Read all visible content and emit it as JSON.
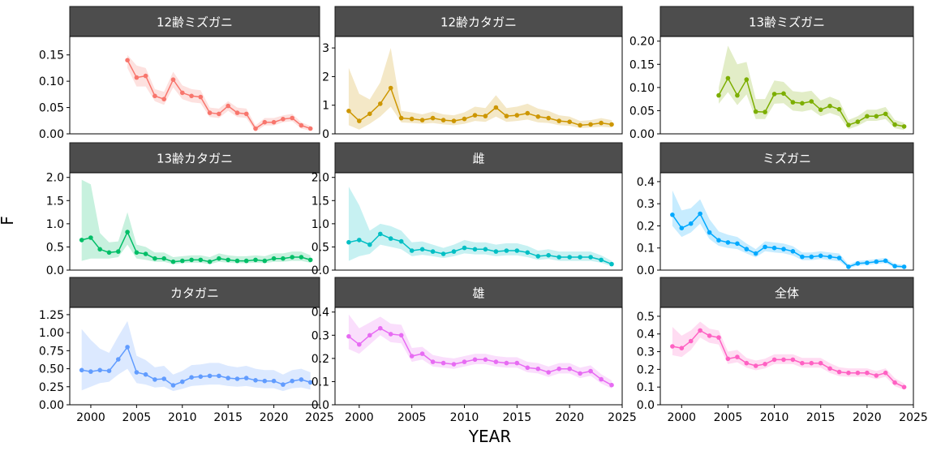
{
  "chart_data": {
    "type": "line",
    "layout": "faceted 3x3, free y scales, shared x axis",
    "xlabel": "YEAR",
    "ylabel": "F",
    "xlim": [
      1997.7,
      2025
    ],
    "x_ticks": [
      2000,
      2005,
      2010,
      2015,
      2020,
      2025
    ],
    "x_tick_labels": [
      "2000",
      "2005",
      "2010",
      "2015",
      "2020",
      "2025"
    ],
    "grid": false,
    "legend": "none",
    "panels": [
      {
        "title": "12齢ミズガニ",
        "color": "#F8766D",
        "ylim": [
          0,
          0.185
        ],
        "y_ticks": [
          0,
          0.05,
          0.1,
          0.15
        ],
        "y_tick_labels": [
          "0.00",
          "0.05",
          "0.10",
          "0.15"
        ],
        "x": [
          2004,
          2005,
          2006,
          2007,
          2008,
          2009,
          2010,
          2011,
          2012,
          2013,
          2014,
          2015,
          2016,
          2017,
          2018,
          2019,
          2020,
          2021,
          2022,
          2023,
          2024
        ],
        "values": [
          0.14,
          0.107,
          0.11,
          0.072,
          0.066,
          0.103,
          0.078,
          0.072,
          0.07,
          0.04,
          0.038,
          0.053,
          0.04,
          0.038,
          0.01,
          0.022,
          0.022,
          0.028,
          0.03,
          0.016,
          0.01
        ],
        "lower": [
          0.125,
          0.09,
          0.09,
          0.062,
          0.055,
          0.088,
          0.066,
          0.06,
          0.058,
          0.032,
          0.03,
          0.044,
          0.032,
          0.03,
          0.004,
          0.016,
          0.016,
          0.022,
          0.024,
          0.01,
          0.006
        ],
        "upper": [
          0.15,
          0.13,
          0.125,
          0.085,
          0.08,
          0.118,
          0.092,
          0.085,
          0.083,
          0.05,
          0.048,
          0.062,
          0.05,
          0.048,
          0.016,
          0.03,
          0.03,
          0.035,
          0.038,
          0.022,
          0.015
        ]
      },
      {
        "title": "12齢カタガニ",
        "color": "#CD9600",
        "ylim": [
          0,
          3.4
        ],
        "y_ticks": [
          0,
          1,
          2,
          3
        ],
        "y_tick_labels": [
          "0",
          "1",
          "2",
          "3"
        ],
        "x": [
          1999,
          2000,
          2001,
          2002,
          2003,
          2004,
          2005,
          2006,
          2007,
          2008,
          2009,
          2010,
          2011,
          2012,
          2013,
          2014,
          2015,
          2016,
          2017,
          2018,
          2019,
          2020,
          2021,
          2022,
          2023,
          2024
        ],
        "values": [
          0.8,
          0.45,
          0.7,
          1.05,
          1.6,
          0.55,
          0.52,
          0.48,
          0.55,
          0.48,
          0.45,
          0.52,
          0.65,
          0.62,
          0.92,
          0.62,
          0.65,
          0.72,
          0.6,
          0.55,
          0.45,
          0.42,
          0.3,
          0.33,
          0.38,
          0.33
        ],
        "lower": [
          0.3,
          0.15,
          0.35,
          0.6,
          0.95,
          0.4,
          0.38,
          0.35,
          0.38,
          0.33,
          0.3,
          0.35,
          0.45,
          0.42,
          0.6,
          0.42,
          0.45,
          0.5,
          0.4,
          0.38,
          0.3,
          0.28,
          0.2,
          0.22,
          0.25,
          0.22
        ],
        "upper": [
          2.3,
          1.4,
          1.2,
          1.8,
          3.0,
          0.8,
          0.75,
          0.68,
          0.78,
          0.68,
          0.65,
          0.75,
          0.95,
          0.9,
          1.35,
          0.9,
          0.95,
          1.05,
          0.88,
          0.8,
          0.65,
          0.6,
          0.45,
          0.48,
          0.55,
          0.48
        ]
      },
      {
        "title": "13齢ミズガニ",
        "color": "#7CAE00",
        "ylim": [
          0,
          0.21
        ],
        "y_ticks": [
          0,
          0.05,
          0.1,
          0.15,
          0.2
        ],
        "y_tick_labels": [
          "0.00",
          "0.05",
          "0.10",
          "0.15",
          "0.20"
        ],
        "x": [
          2004,
          2005,
          2006,
          2007,
          2008,
          2009,
          2010,
          2011,
          2012,
          2013,
          2014,
          2015,
          2016,
          2017,
          2018,
          2019,
          2020,
          2021,
          2022,
          2023,
          2024
        ],
        "values": [
          0.083,
          0.12,
          0.083,
          0.117,
          0.048,
          0.047,
          0.086,
          0.087,
          0.068,
          0.066,
          0.07,
          0.052,
          0.06,
          0.053,
          0.019,
          0.026,
          0.038,
          0.038,
          0.043,
          0.02,
          0.016
        ],
        "lower": [
          0.065,
          0.09,
          0.062,
          0.085,
          0.032,
          0.032,
          0.065,
          0.066,
          0.05,
          0.048,
          0.052,
          0.038,
          0.045,
          0.038,
          0.01,
          0.017,
          0.028,
          0.028,
          0.032,
          0.012,
          0.008
        ],
        "upper": [
          0.1,
          0.19,
          0.15,
          0.155,
          0.075,
          0.075,
          0.115,
          0.112,
          0.092,
          0.09,
          0.093,
          0.072,
          0.08,
          0.072,
          0.03,
          0.038,
          0.052,
          0.052,
          0.058,
          0.03,
          0.024
        ]
      },
      {
        "title": "13齢カタガニ",
        "color": "#00BE67",
        "ylim": [
          0,
          2.1
        ],
        "y_ticks": [
          0,
          0.5,
          1,
          1.5,
          2
        ],
        "y_tick_labels": [
          "0.0",
          "0.5",
          "1.0",
          "1.5",
          "2.0"
        ],
        "x": [
          1999,
          2000,
          2001,
          2002,
          2003,
          2004,
          2005,
          2006,
          2007,
          2008,
          2009,
          2010,
          2011,
          2012,
          2013,
          2014,
          2015,
          2016,
          2017,
          2018,
          2019,
          2020,
          2021,
          2022,
          2023,
          2024
        ],
        "values": [
          0.65,
          0.7,
          0.45,
          0.38,
          0.4,
          0.82,
          0.38,
          0.35,
          0.25,
          0.25,
          0.18,
          0.2,
          0.22,
          0.22,
          0.18,
          0.25,
          0.22,
          0.2,
          0.2,
          0.22,
          0.2,
          0.25,
          0.25,
          0.28,
          0.28,
          0.22
        ],
        "lower": [
          0.2,
          0.25,
          0.25,
          0.25,
          0.28,
          0.55,
          0.25,
          0.22,
          0.18,
          0.18,
          0.13,
          0.15,
          0.16,
          0.16,
          0.13,
          0.18,
          0.16,
          0.15,
          0.15,
          0.16,
          0.15,
          0.18,
          0.18,
          0.2,
          0.2,
          0.16
        ],
        "upper": [
          1.95,
          1.85,
          0.8,
          0.6,
          0.62,
          1.25,
          0.55,
          0.5,
          0.38,
          0.38,
          0.28,
          0.3,
          0.32,
          0.32,
          0.28,
          0.36,
          0.32,
          0.3,
          0.3,
          0.32,
          0.3,
          0.36,
          0.36,
          0.4,
          0.4,
          0.32
        ]
      },
      {
        "title": "雌",
        "color": "#00BFC4",
        "ylim": [
          0,
          2.1
        ],
        "y_ticks": [
          0,
          0.5,
          1,
          1.5,
          2
        ],
        "y_tick_labels": [
          "0.0",
          "0.5",
          "1.0",
          "1.5",
          "2.0"
        ],
        "x": [
          1999,
          2000,
          2001,
          2002,
          2003,
          2004,
          2005,
          2006,
          2007,
          2008,
          2009,
          2010,
          2011,
          2012,
          2013,
          2014,
          2015,
          2016,
          2017,
          2018,
          2019,
          2020,
          2021,
          2022,
          2023,
          2024
        ],
        "values": [
          0.6,
          0.65,
          0.55,
          0.78,
          0.68,
          0.62,
          0.42,
          0.45,
          0.4,
          0.35,
          0.4,
          0.48,
          0.45,
          0.45,
          0.4,
          0.42,
          0.42,
          0.38,
          0.3,
          0.32,
          0.28,
          0.28,
          0.28,
          0.28,
          0.22,
          0.13
        ],
        "lower": [
          0.2,
          0.3,
          0.35,
          0.55,
          0.5,
          0.45,
          0.3,
          0.33,
          0.3,
          0.26,
          0.3,
          0.36,
          0.34,
          0.34,
          0.3,
          0.32,
          0.32,
          0.28,
          0.22,
          0.24,
          0.2,
          0.2,
          0.2,
          0.2,
          0.16,
          0.08
        ],
        "upper": [
          1.8,
          1.4,
          0.85,
          1.0,
          0.95,
          0.85,
          0.6,
          0.62,
          0.55,
          0.48,
          0.55,
          0.65,
          0.6,
          0.6,
          0.55,
          0.58,
          0.58,
          0.52,
          0.42,
          0.45,
          0.4,
          0.4,
          0.4,
          0.4,
          0.32,
          0.2
        ]
      },
      {
        "title": "ミズガニ",
        "color": "#00A9FF",
        "ylim": [
          0,
          0.44
        ],
        "y_ticks": [
          0,
          0.1,
          0.2,
          0.3,
          0.4
        ],
        "y_tick_labels": [
          "0.0",
          "0.1",
          "0.2",
          "0.3",
          "0.4"
        ],
        "x": [
          1999,
          2000,
          2001,
          2002,
          2003,
          2004,
          2005,
          2006,
          2007,
          2008,
          2009,
          2010,
          2011,
          2012,
          2013,
          2014,
          2015,
          2016,
          2017,
          2018,
          2019,
          2020,
          2021,
          2022,
          2023,
          2024
        ],
        "values": [
          0.25,
          0.19,
          0.21,
          0.255,
          0.17,
          0.135,
          0.125,
          0.12,
          0.095,
          0.075,
          0.105,
          0.1,
          0.095,
          0.085,
          0.06,
          0.06,
          0.065,
          0.06,
          0.055,
          0.015,
          0.03,
          0.033,
          0.038,
          0.042,
          0.018,
          0.015
        ],
        "lower": [
          0.2,
          0.15,
          0.17,
          0.21,
          0.14,
          0.11,
          0.1,
          0.095,
          0.075,
          0.058,
          0.085,
          0.08,
          0.076,
          0.066,
          0.045,
          0.045,
          0.05,
          0.045,
          0.04,
          0.008,
          0.02,
          0.023,
          0.028,
          0.032,
          0.01,
          0.008
        ],
        "upper": [
          0.36,
          0.27,
          0.28,
          0.32,
          0.23,
          0.175,
          0.16,
          0.15,
          0.12,
          0.095,
          0.13,
          0.125,
          0.12,
          0.108,
          0.08,
          0.08,
          0.085,
          0.08,
          0.075,
          0.025,
          0.042,
          0.045,
          0.05,
          0.055,
          0.028,
          0.024
        ]
      },
      {
        "title": "カタガニ",
        "color": "#619CFF",
        "ylim": [
          0,
          1.35
        ],
        "y_ticks": [
          0,
          0.25,
          0.5,
          0.75,
          1.0,
          1.25
        ],
        "y_tick_labels": [
          "0.00",
          "0.25",
          "0.50",
          "0.75",
          "1.00",
          "1.25"
        ],
        "x": [
          1999,
          2000,
          2001,
          2002,
          2003,
          2004,
          2005,
          2006,
          2007,
          2008,
          2009,
          2010,
          2011,
          2012,
          2013,
          2014,
          2015,
          2016,
          2017,
          2018,
          2019,
          2020,
          2021,
          2022,
          2023,
          2024
        ],
        "values": [
          0.48,
          0.46,
          0.48,
          0.47,
          0.63,
          0.8,
          0.45,
          0.42,
          0.35,
          0.36,
          0.27,
          0.32,
          0.38,
          0.39,
          0.4,
          0.4,
          0.37,
          0.36,
          0.37,
          0.34,
          0.33,
          0.33,
          0.28,
          0.33,
          0.35,
          0.31
        ],
        "lower": [
          0.2,
          0.25,
          0.3,
          0.32,
          0.42,
          0.5,
          0.3,
          0.28,
          0.24,
          0.25,
          0.19,
          0.22,
          0.26,
          0.27,
          0.28,
          0.28,
          0.26,
          0.25,
          0.26,
          0.24,
          0.23,
          0.23,
          0.19,
          0.23,
          0.24,
          0.21
        ],
        "upper": [
          1.05,
          0.9,
          0.78,
          0.72,
          0.95,
          1.16,
          0.68,
          0.62,
          0.52,
          0.54,
          0.42,
          0.47,
          0.55,
          0.56,
          0.58,
          0.58,
          0.54,
          0.52,
          0.54,
          0.5,
          0.48,
          0.48,
          0.42,
          0.48,
          0.5,
          0.45
        ]
      },
      {
        "title": "雄",
        "color": "#E76BF3",
        "ylim": [
          0,
          0.42
        ],
        "y_ticks": [
          0,
          0.1,
          0.2,
          0.3,
          0.4
        ],
        "y_tick_labels": [
          "0.0",
          "0.1",
          "0.2",
          "0.3",
          "0.4"
        ],
        "x": [
          1999,
          2000,
          2001,
          2002,
          2003,
          2004,
          2005,
          2006,
          2007,
          2008,
          2009,
          2010,
          2011,
          2012,
          2013,
          2014,
          2015,
          2016,
          2017,
          2018,
          2019,
          2020,
          2021,
          2022,
          2023,
          2024
        ],
        "values": [
          0.295,
          0.26,
          0.3,
          0.33,
          0.305,
          0.3,
          0.21,
          0.22,
          0.185,
          0.18,
          0.175,
          0.185,
          0.195,
          0.195,
          0.185,
          0.18,
          0.18,
          0.16,
          0.155,
          0.14,
          0.155,
          0.155,
          0.135,
          0.145,
          0.11,
          0.085
        ],
        "lower": [
          0.24,
          0.22,
          0.26,
          0.3,
          0.27,
          0.265,
          0.185,
          0.195,
          0.165,
          0.16,
          0.155,
          0.165,
          0.175,
          0.175,
          0.165,
          0.16,
          0.16,
          0.14,
          0.135,
          0.12,
          0.135,
          0.135,
          0.115,
          0.125,
          0.092,
          0.07
        ],
        "upper": [
          0.39,
          0.33,
          0.355,
          0.38,
          0.35,
          0.345,
          0.245,
          0.25,
          0.215,
          0.205,
          0.2,
          0.21,
          0.22,
          0.22,
          0.21,
          0.205,
          0.205,
          0.185,
          0.18,
          0.165,
          0.18,
          0.18,
          0.16,
          0.17,
          0.132,
          0.105
        ]
      },
      {
        "title": "全体",
        "color": "#FF61C3",
        "ylim": [
          0,
          0.55
        ],
        "y_ticks": [
          0,
          0.1,
          0.2,
          0.3,
          0.4,
          0.5
        ],
        "y_tick_labels": [
          "0.0",
          "0.1",
          "0.2",
          "0.3",
          "0.4",
          "0.5"
        ],
        "x": [
          1999,
          2000,
          2001,
          2002,
          2003,
          2004,
          2005,
          2006,
          2007,
          2008,
          2009,
          2010,
          2011,
          2012,
          2013,
          2014,
          2015,
          2016,
          2017,
          2018,
          2019,
          2020,
          2021,
          2022,
          2023,
          2024
        ],
        "values": [
          0.33,
          0.32,
          0.36,
          0.42,
          0.39,
          0.38,
          0.26,
          0.27,
          0.235,
          0.22,
          0.23,
          0.255,
          0.255,
          0.255,
          0.235,
          0.235,
          0.235,
          0.205,
          0.185,
          0.18,
          0.18,
          0.18,
          0.165,
          0.18,
          0.125,
          0.1
        ],
        "lower": [
          0.28,
          0.27,
          0.31,
          0.38,
          0.35,
          0.34,
          0.23,
          0.24,
          0.21,
          0.195,
          0.205,
          0.23,
          0.23,
          0.23,
          0.21,
          0.21,
          0.21,
          0.18,
          0.162,
          0.158,
          0.158,
          0.158,
          0.145,
          0.158,
          0.105,
          0.085
        ],
        "upper": [
          0.44,
          0.39,
          0.42,
          0.47,
          0.43,
          0.42,
          0.3,
          0.31,
          0.265,
          0.25,
          0.26,
          0.285,
          0.285,
          0.285,
          0.265,
          0.265,
          0.265,
          0.235,
          0.212,
          0.206,
          0.206,
          0.206,
          0.19,
          0.206,
          0.15,
          0.12
        ]
      }
    ]
  }
}
